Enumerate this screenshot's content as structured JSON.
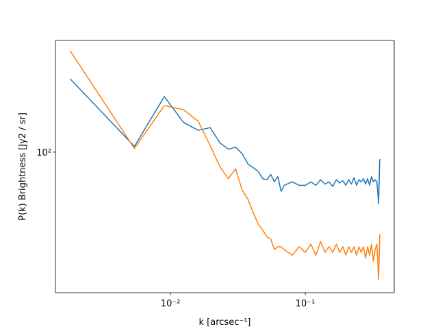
{
  "chart_data": {
    "type": "line",
    "xlabel": "k [arcsec⁻¹]",
    "ylabel": "P(k) Brightness [Jy2 / sr]",
    "xscale": "log",
    "yscale": "log",
    "xlim": [
      0.0014,
      0.457
    ],
    "ylim": [
      15.1,
      449
    ],
    "xticks": [
      {
        "value": 0.01,
        "label": "10⁻²"
      },
      {
        "value": 0.1,
        "label": "10⁻¹"
      }
    ],
    "yticks": [
      {
        "value": 100,
        "label": "10²"
      }
    ],
    "x": [
      0.0018,
      0.0054,
      0.009,
      0.0125,
      0.0161,
      0.0197,
      0.0233,
      0.0269,
      0.0304,
      0.034,
      0.0376,
      0.0412,
      0.0448,
      0.0483,
      0.0519,
      0.0555,
      0.059,
      0.0626,
      0.0662,
      0.0698,
      0.08,
      0.09,
      0.1,
      0.11,
      0.12,
      0.13,
      0.14,
      0.15,
      0.16,
      0.17,
      0.18,
      0.19,
      0.2,
      0.21,
      0.22,
      0.23,
      0.24,
      0.25,
      0.26,
      0.27,
      0.28,
      0.29,
      0.3,
      0.31,
      0.32,
      0.33,
      0.34,
      0.35,
      0.357
    ],
    "series": [
      {
        "color": "#1f77b4",
        "values": [
          268,
          108,
          211,
          149,
          134,
          139,
          113,
          104,
          107,
          98,
          85,
          81,
          77,
          70,
          69,
          74,
          67,
          72,
          59,
          64,
          67,
          64,
          64,
          67,
          64,
          69,
          65,
          67,
          63,
          69,
          66,
          68,
          64,
          69,
          65,
          71,
          64,
          69,
          67,
          70,
          65,
          70,
          64,
          72,
          67,
          69,
          67,
          50,
          91
        ]
      },
      {
        "color": "#ff7f0e",
        "values": [
          391,
          105,
          187,
          177,
          151,
          109,
          82,
          70,
          80,
          60,
          53,
          44,
          38,
          35,
          32,
          31,
          27,
          28,
          28,
          27,
          25,
          28,
          26,
          29,
          25,
          30,
          26,
          28,
          26,
          29,
          26,
          28,
          25,
          28,
          26,
          28,
          25,
          28,
          26,
          28,
          24,
          28,
          25,
          29,
          23,
          27,
          29,
          18,
          33
        ]
      }
    ]
  }
}
